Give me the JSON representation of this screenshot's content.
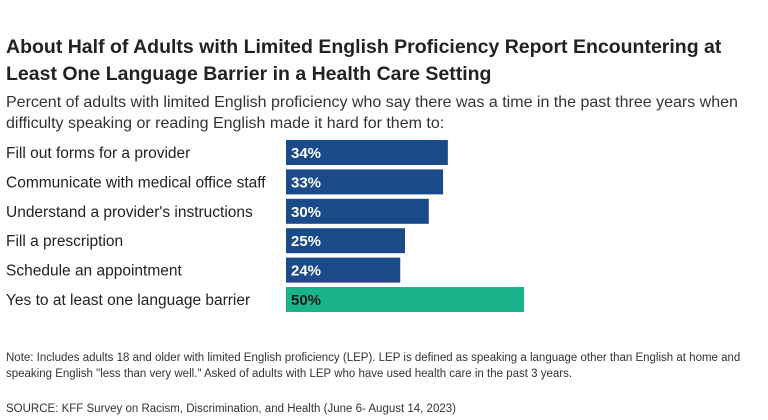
{
  "title": "About Half of Adults with Limited English Proficiency Report Encountering at Least One Language Barrier in a Health Care Setting",
  "subtitle": "Percent of adults with limited English proficiency who say there was a time in the past three years when difficulty speaking or reading English made it hard for them to:",
  "note": "Note: Includes adults 18 and older with limited English proficiency (LEP). LEP is defined as speaking a language other than English at home and speaking English \"less than very well.\" Asked of adults with LEP who have used health care in the past 3 years.",
  "source": "SOURCE: KFF Survey on Racism, Discrimination, and Health (June 6- August 14, 2023)",
  "colors": {
    "primary": "#1a4a8a",
    "highlight": "#19b48c",
    "label_text": "#ffffff"
  },
  "chart_data": {
    "type": "bar",
    "orientation": "horizontal",
    "categories": [
      "Fill out forms for a provider",
      "Communicate with medical office staff",
      "Understand a provider's instructions",
      "Fill a prescription",
      "Schedule an appointment",
      "Yes to at least one language barrier"
    ],
    "values": [
      34,
      33,
      30,
      25,
      24,
      50
    ],
    "value_labels": [
      "34%",
      "33%",
      "30%",
      "25%",
      "24%",
      "50%"
    ],
    "highlighted_index": 5,
    "xlim": [
      0,
      100
    ],
    "grid": false,
    "legend": "none"
  }
}
